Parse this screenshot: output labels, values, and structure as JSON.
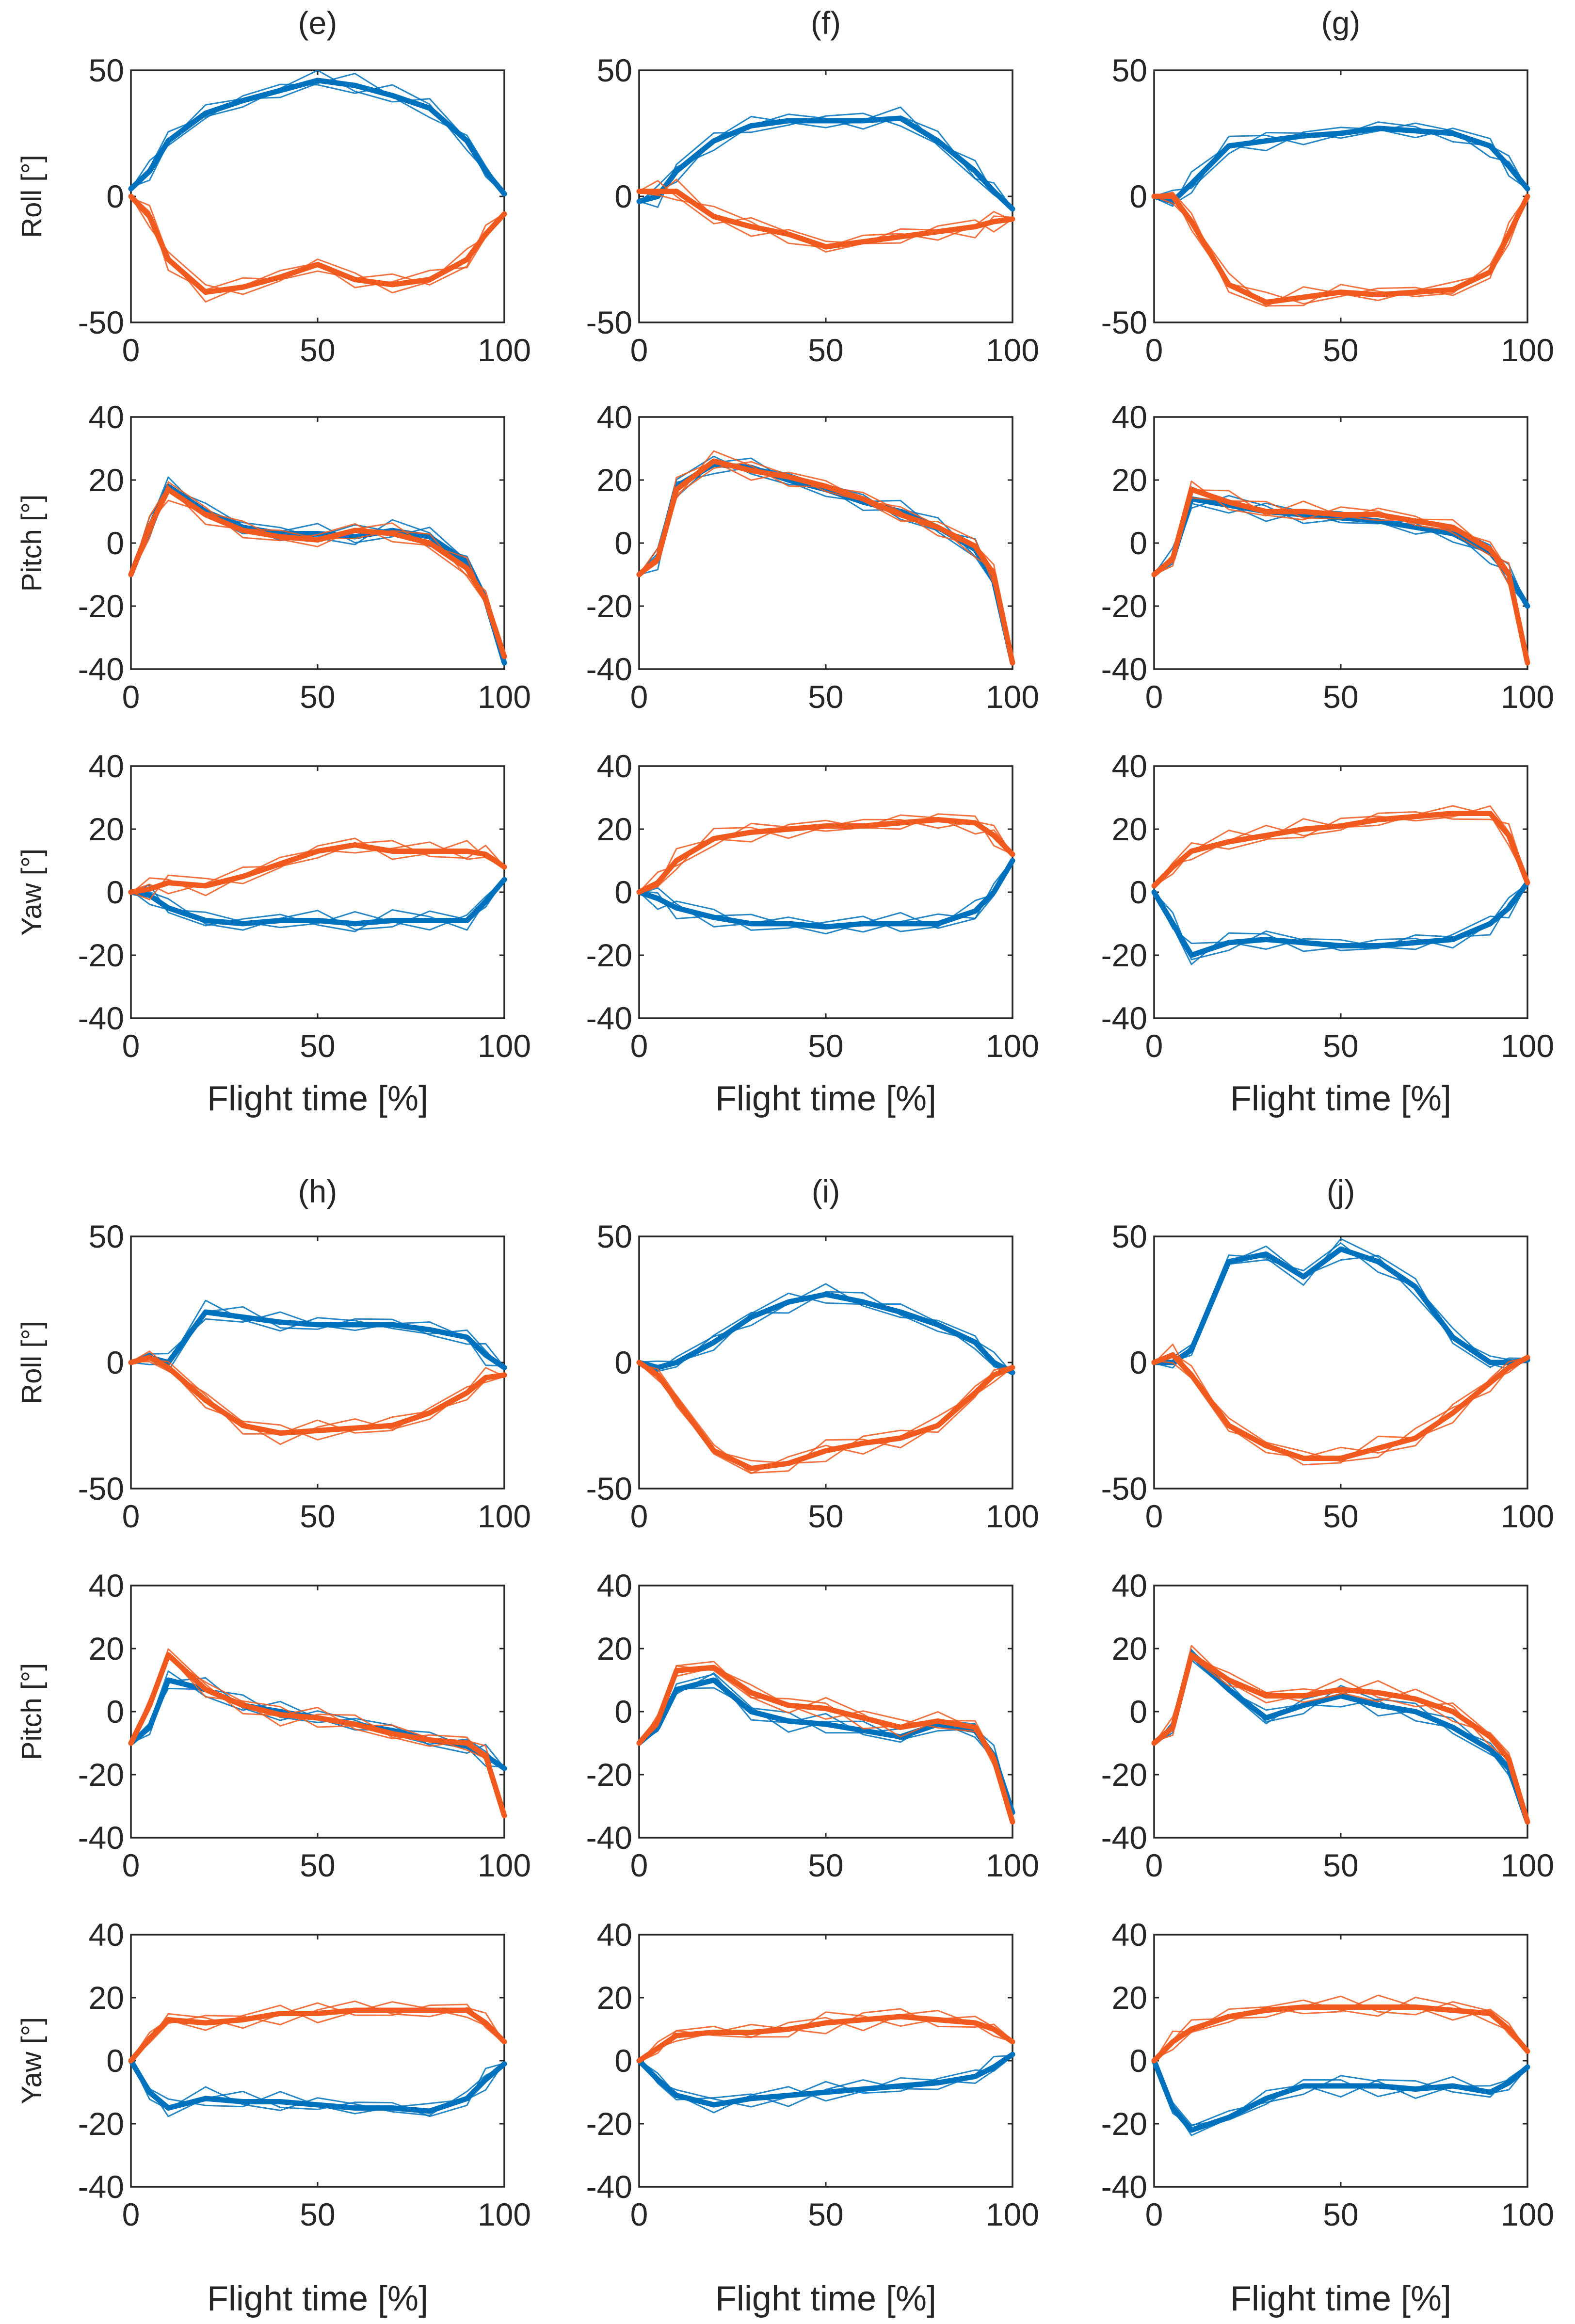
{
  "figure": {
    "panels": [
      {
        "id": "e",
        "title": "(e)"
      },
      {
        "id": "f",
        "title": "(f)"
      },
      {
        "id": "g",
        "title": "(g)"
      },
      {
        "id": "h",
        "title": "(h)"
      },
      {
        "id": "i",
        "title": "(i)"
      },
      {
        "id": "j",
        "title": "(j)"
      }
    ],
    "row_labels": [
      "Roll [°]",
      "Pitch [°]",
      "Yaw [°]"
    ],
    "xlabel": "Flight time [%]",
    "series_colors": {
      "blue": "#0072BD",
      "orange": "#F05A1E"
    }
  },
  "chart_data": {
    "type": "line",
    "title": "",
    "xlabel": "Flight time [%]",
    "xlim": [
      0,
      100
    ],
    "xticks": [
      0,
      50,
      100
    ],
    "rows": [
      {
        "label": "Roll [°]",
        "ylim": [
          -50,
          50
        ],
        "yticks": [
          -50,
          0,
          50
        ]
      },
      {
        "label": "Pitch [°]",
        "ylim": [
          -40,
          40
        ],
        "yticks": [
          -40,
          -20,
          0,
          20,
          40
        ]
      },
      {
        "label": "Yaw [°]",
        "ylim": [
          -40,
          40
        ],
        "yticks": [
          -40,
          -20,
          0,
          20,
          40
        ]
      }
    ],
    "panels": [
      {
        "id": "e",
        "title": "(e)",
        "roll": {
          "x": [
            0,
            5,
            10,
            20,
            30,
            40,
            50,
            60,
            70,
            80,
            90,
            95,
            100
          ],
          "blue": [
            3,
            10,
            22,
            33,
            38,
            42,
            46,
            44,
            40,
            35,
            22,
            10,
            1
          ],
          "orange": [
            0,
            -8,
            -25,
            -38,
            -36,
            -32,
            -27,
            -33,
            -35,
            -33,
            -25,
            -15,
            -7
          ]
        },
        "pitch": {
          "x": [
            0,
            5,
            10,
            20,
            30,
            40,
            50,
            60,
            70,
            80,
            90,
            95,
            100
          ],
          "blue": [
            -10,
            5,
            18,
            10,
            5,
            3,
            3,
            2,
            4,
            2,
            -6,
            -18,
            -38
          ],
          "orange": [
            -10,
            5,
            17,
            9,
            4,
            2,
            1,
            4,
            3,
            0,
            -8,
            -18,
            -36
          ]
        },
        "yaw": {
          "x": [
            0,
            5,
            10,
            20,
            30,
            40,
            50,
            60,
            70,
            80,
            90,
            95,
            100
          ],
          "blue": [
            0,
            -1,
            -5,
            -9,
            -10,
            -9,
            -9,
            -10,
            -9,
            -9,
            -9,
            -3,
            4
          ],
          "orange": [
            0,
            1,
            3,
            2,
            5,
            9,
            13,
            15,
            13,
            13,
            13,
            12,
            8
          ]
        }
      },
      {
        "id": "f",
        "title": "(f)",
        "roll": {
          "x": [
            0,
            5,
            10,
            20,
            30,
            40,
            50,
            60,
            70,
            80,
            90,
            95,
            100
          ],
          "blue": [
            -2,
            0,
            10,
            22,
            28,
            30,
            30,
            30,
            31,
            22,
            10,
            2,
            -5
          ],
          "orange": [
            2,
            2,
            2,
            -8,
            -12,
            -15,
            -20,
            -18,
            -16,
            -14,
            -12,
            -10,
            -9
          ]
        },
        "pitch": {
          "x": [
            0,
            5,
            10,
            20,
            30,
            40,
            50,
            60,
            70,
            80,
            90,
            95,
            100
          ],
          "blue": [
            -10,
            -5,
            18,
            25,
            24,
            20,
            17,
            13,
            10,
            5,
            -2,
            -12,
            -38
          ],
          "orange": [
            -10,
            -5,
            17,
            26,
            23,
            21,
            18,
            14,
            9,
            5,
            -1,
            -10,
            -38
          ]
        },
        "yaw": {
          "x": [
            0,
            5,
            10,
            20,
            30,
            40,
            50,
            60,
            70,
            80,
            90,
            95,
            100
          ],
          "blue": [
            0,
            -2,
            -5,
            -8,
            -10,
            -10,
            -11,
            -10,
            -10,
            -10,
            -6,
            0,
            10
          ],
          "orange": [
            0,
            3,
            10,
            17,
            19,
            20,
            21,
            21,
            22,
            23,
            22,
            18,
            12
          ]
        }
      },
      {
        "id": "g",
        "title": "(g)",
        "roll": {
          "x": [
            0,
            5,
            10,
            20,
            30,
            40,
            50,
            60,
            70,
            80,
            90,
            95,
            100
          ],
          "blue": [
            0,
            -2,
            5,
            20,
            22,
            24,
            25,
            27,
            26,
            25,
            20,
            12,
            3
          ],
          "orange": [
            0,
            0,
            -10,
            -35,
            -42,
            -40,
            -38,
            -39,
            -38,
            -37,
            -30,
            -15,
            0
          ]
        },
        "pitch": {
          "x": [
            0,
            5,
            10,
            20,
            30,
            40,
            50,
            60,
            70,
            80,
            90,
            95,
            100
          ],
          "blue": [
            -10,
            -5,
            14,
            12,
            10,
            9,
            8,
            7,
            5,
            3,
            -3,
            -10,
            -20
          ],
          "orange": [
            -10,
            -5,
            17,
            13,
            10,
            10,
            9,
            9,
            7,
            5,
            -2,
            -10,
            -38
          ]
        },
        "yaw": {
          "x": [
            0,
            5,
            10,
            20,
            30,
            40,
            50,
            60,
            70,
            80,
            90,
            95,
            100
          ],
          "blue": [
            0,
            -10,
            -20,
            -16,
            -15,
            -16,
            -17,
            -17,
            -16,
            -15,
            -10,
            -5,
            3
          ],
          "orange": [
            2,
            8,
            13,
            16,
            18,
            20,
            21,
            23,
            24,
            25,
            25,
            18,
            3
          ]
        }
      },
      {
        "id": "h",
        "title": "(h)",
        "roll": {
          "x": [
            0,
            5,
            10,
            20,
            30,
            40,
            50,
            60,
            70,
            80,
            90,
            95,
            100
          ],
          "blue": [
            0,
            2,
            0,
            20,
            18,
            16,
            15,
            15,
            15,
            13,
            10,
            3,
            -2
          ],
          "orange": [
            0,
            2,
            -2,
            -15,
            -25,
            -28,
            -27,
            -26,
            -25,
            -20,
            -12,
            -6,
            -5
          ]
        },
        "pitch": {
          "x": [
            0,
            5,
            10,
            20,
            30,
            40,
            50,
            60,
            70,
            80,
            90,
            95,
            100
          ],
          "blue": [
            -10,
            -5,
            10,
            7,
            2,
            0,
            -2,
            -4,
            -6,
            -9,
            -11,
            -14,
            -18
          ],
          "orange": [
            -10,
            2,
            18,
            7,
            2,
            -1,
            -2,
            -4,
            -7,
            -9,
            -10,
            -14,
            -33
          ]
        },
        "yaw": {
          "x": [
            0,
            5,
            10,
            20,
            30,
            40,
            50,
            60,
            70,
            80,
            90,
            95,
            100
          ],
          "blue": [
            0,
            -10,
            -15,
            -12,
            -13,
            -13,
            -14,
            -15,
            -15,
            -16,
            -12,
            -6,
            -1
          ],
          "orange": [
            0,
            7,
            13,
            12,
            13,
            15,
            15,
            16,
            16,
            16,
            16,
            12,
            6
          ]
        }
      },
      {
        "id": "i",
        "title": "(i)",
        "roll": {
          "x": [
            0,
            5,
            10,
            20,
            30,
            40,
            50,
            60,
            70,
            80,
            90,
            95,
            100
          ],
          "blue": [
            0,
            -2,
            0,
            8,
            18,
            24,
            27,
            24,
            20,
            15,
            8,
            0,
            -4
          ],
          "orange": [
            0,
            -5,
            -15,
            -35,
            -42,
            -40,
            -35,
            -32,
            -30,
            -25,
            -12,
            -5,
            -2
          ]
        },
        "pitch": {
          "x": [
            0,
            5,
            10,
            20,
            30,
            40,
            50,
            60,
            70,
            80,
            90,
            95,
            100
          ],
          "blue": [
            -10,
            -5,
            7,
            10,
            0,
            -3,
            -4,
            -6,
            -8,
            -4,
            -6,
            -14,
            -32
          ],
          "orange": [
            -10,
            -3,
            13,
            14,
            6,
            2,
            1,
            -2,
            -5,
            -3,
            -5,
            -15,
            -35
          ]
        },
        "yaw": {
          "x": [
            0,
            5,
            10,
            20,
            30,
            40,
            50,
            60,
            70,
            80,
            90,
            95,
            100
          ],
          "blue": [
            0,
            -6,
            -11,
            -14,
            -12,
            -11,
            -10,
            -9,
            -8,
            -7,
            -5,
            -2,
            2
          ],
          "orange": [
            0,
            4,
            8,
            9,
            9,
            10,
            12,
            13,
            14,
            13,
            12,
            10,
            6
          ]
        }
      },
      {
        "id": "j",
        "title": "(j)",
        "roll": {
          "x": [
            0,
            5,
            10,
            20,
            30,
            40,
            50,
            60,
            70,
            80,
            90,
            95,
            100
          ],
          "blue": [
            0,
            0,
            5,
            40,
            43,
            34,
            45,
            40,
            30,
            10,
            0,
            0,
            1
          ],
          "orange": [
            0,
            3,
            -5,
            -25,
            -33,
            -38,
            -38,
            -34,
            -30,
            -20,
            -8,
            -2,
            2
          ]
        },
        "pitch": {
          "x": [
            0,
            5,
            10,
            20,
            30,
            40,
            50,
            60,
            70,
            80,
            90,
            95,
            100
          ],
          "blue": [
            -10,
            -5,
            18,
            7,
            -2,
            2,
            5,
            2,
            0,
            -5,
            -12,
            -18,
            -35
          ],
          "orange": [
            -10,
            -5,
            18,
            10,
            5,
            5,
            7,
            6,
            4,
            0,
            -8,
            -15,
            -35
          ]
        },
        "yaw": {
          "x": [
            0,
            5,
            10,
            20,
            30,
            40,
            50,
            60,
            70,
            80,
            90,
            95,
            100
          ],
          "blue": [
            0,
            -15,
            -22,
            -18,
            -12,
            -8,
            -8,
            -8,
            -9,
            -8,
            -10,
            -7,
            -2
          ],
          "orange": [
            0,
            6,
            10,
            14,
            16,
            17,
            17,
            17,
            17,
            16,
            15,
            10,
            3
          ]
        }
      }
    ]
  }
}
